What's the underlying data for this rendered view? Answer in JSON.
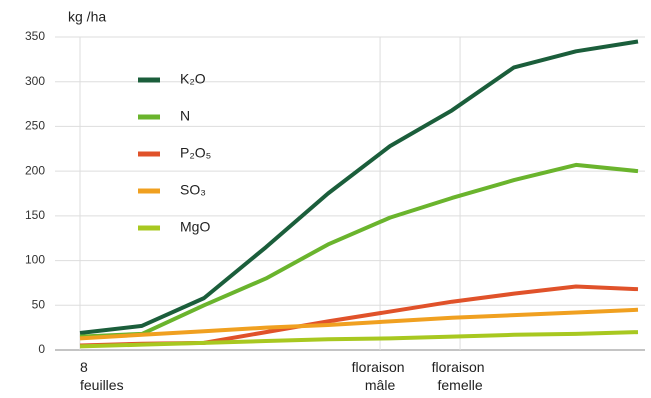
{
  "chart_data": {
    "type": "line",
    "y_label": "kg /ha",
    "x": [
      0,
      1,
      2,
      3,
      4,
      5,
      6,
      7,
      8,
      9
    ],
    "xlim": [
      0,
      9
    ],
    "xticks": [
      {
        "value": 0,
        "label": "8 feuilles"
      },
      {
        "value": 4.84,
        "label": "floraison mâle"
      },
      {
        "value": 6.13,
        "label": "floraison femelle"
      }
    ],
    "ylim": [
      0,
      350
    ],
    "yticks": [
      0,
      50,
      100,
      150,
      200,
      250,
      300,
      350
    ],
    "grid": true,
    "series": [
      {
        "name": "K₂O",
        "color": "#1b5e3b",
        "values": [
          19,
          27,
          58,
          115,
          175,
          228,
          268,
          316,
          334,
          345
        ]
      },
      {
        "name": "N",
        "color": "#6ab42d",
        "values": [
          15,
          18,
          50,
          80,
          118,
          148,
          170,
          190,
          207,
          200
        ]
      },
      {
        "name": "P₂O₅",
        "color": "#e0522a",
        "values": [
          5,
          7,
          8,
          20,
          32,
          43,
          54,
          63,
          71,
          68
        ]
      },
      {
        "name": "SO₃",
        "color": "#f0a020",
        "values": [
          13,
          17,
          21,
          25,
          28,
          32,
          36,
          39,
          42,
          45
        ]
      },
      {
        "name": "MgO",
        "color": "#a8c820",
        "values": [
          4,
          6,
          8,
          10,
          12,
          13,
          15,
          17,
          18,
          20
        ]
      }
    ]
  }
}
